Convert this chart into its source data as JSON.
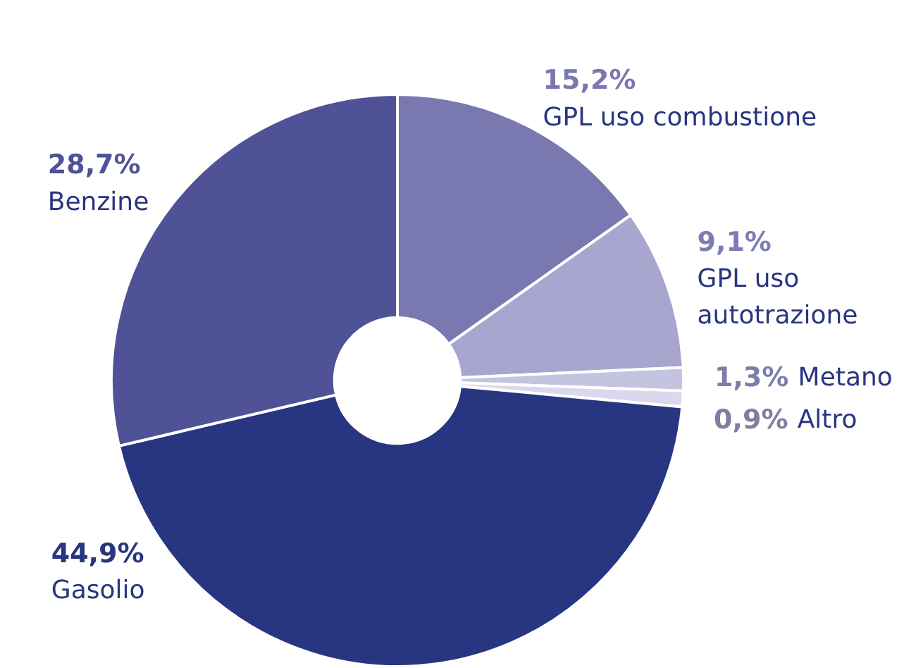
{
  "chart_data": {
    "type": "donut",
    "categories": [
      "GPL uso combustione",
      "GPL uso autotrazione",
      "Metano",
      "Altro",
      "Gasolio",
      "Benzine"
    ],
    "values": [
      15.2,
      9.1,
      1.3,
      0.9,
      44.9,
      28.7
    ],
    "colors": [
      "#7a78b0",
      "#a8a6cf",
      "#c4c3e0",
      "#d9d8ec",
      "#283580",
      "#4f5296"
    ],
    "value_labels": [
      "15,2%",
      "9,1%",
      "1,3%",
      "0,9%",
      "44,9%",
      "28,7%"
    ],
    "legend": false
  }
}
